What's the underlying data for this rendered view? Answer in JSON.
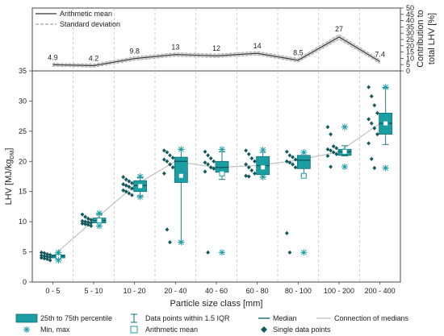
{
  "chart_data": [
    {
      "type": "line",
      "panel": "top",
      "ylabel_line1": "Contribution to",
      "ylabel_line2": "total LHV [%]",
      "ylim": [
        0,
        50
      ],
      "yticks": [
        "0",
        "5",
        "10",
        "15",
        "20",
        "25",
        "30",
        "35",
        "40",
        "45",
        "50"
      ],
      "grid": "vertical-dashed",
      "legend": {
        "placement": "top-left",
        "mean": "Arithmetic mean",
        "sd": "Standard deviation"
      },
      "categories": [
        "0 - 5",
        "5 - 10",
        "10 - 20",
        "20 - 40",
        "40 - 60",
        "60 - 80",
        "80 - 100",
        "100 - 200",
        "200 - 400"
      ],
      "series": [
        {
          "name": "Arithmetic mean",
          "values": [
            4.9,
            4.2,
            9.8,
            13,
            12,
            14,
            8.5,
            27,
            7.4
          ]
        }
      ],
      "sd_band": [
        1.2,
        1.2,
        1.4,
        1.4,
        1.4,
        1.4,
        1.4,
        1.9,
        1.4
      ],
      "data_labels": [
        "4.9",
        "4.2",
        "9.8",
        "13",
        "12",
        "14",
        "8.5",
        "27",
        "7.4"
      ]
    },
    {
      "type": "box",
      "panel": "bottom",
      "xlabel": "Particle size class [mm]",
      "ylabel": "LHV [MJ/kg",
      "ylabel_sub": "DM",
      "ylabel_end": "]",
      "ylim": [
        0,
        35
      ],
      "yticks": [
        "0",
        "5",
        "10",
        "15",
        "20",
        "25",
        "30",
        "35"
      ],
      "grid": "vertical-dashed",
      "categories": [
        "0 - 5",
        "5 - 10",
        "10 - 20",
        "20 - 40",
        "40 - 60",
        "60 - 80",
        "80 - 100",
        "100 - 200",
        "200 - 400"
      ],
      "boxes": [
        {
          "q1": 4.0,
          "q3": 4.5,
          "median": 4.3,
          "mean": 4.2,
          "whisker_low": 3.6,
          "whisker_high": 4.9,
          "min": 3.6,
          "max": 4.9
        },
        {
          "q1": 9.8,
          "q3": 10.6,
          "median": 10.2,
          "mean": 10.2,
          "whisker_low": 9.3,
          "whisker_high": 11.2,
          "min": 9.3,
          "max": 11.4
        },
        {
          "q1": 15.0,
          "q3": 16.8,
          "median": 16.0,
          "mean": 15.9,
          "whisker_low": 14.3,
          "whisker_high": 17.3,
          "min": 14.1,
          "max": 17.5
        },
        {
          "q1": 16.5,
          "q3": 20.7,
          "median": 20.0,
          "mean": 17.6,
          "whisker_low": 6.6,
          "whisker_high": 22.0,
          "min": 6.6,
          "max": 22.0
        },
        {
          "q1": 18.2,
          "q3": 20.0,
          "median": 19.0,
          "mean": 18.0,
          "whisker_low": 17.0,
          "whisker_high": 21.6,
          "min": 4.9,
          "max": 22.0
        },
        {
          "q1": 17.8,
          "q3": 20.8,
          "median": 19.3,
          "mean": 19.0,
          "whisker_low": 17.4,
          "whisker_high": 21.5,
          "min": 17.4,
          "max": 21.9
        },
        {
          "q1": 18.8,
          "q3": 21.0,
          "median": 20.2,
          "mean": 17.6,
          "whisker_low": 17.6,
          "whisker_high": 21.5,
          "min": 4.9,
          "max": 21.5
        },
        {
          "q1": 21.0,
          "q3": 22.0,
          "median": 21.6,
          "mean": 21.6,
          "whisker_low": 20.9,
          "whisker_high": 22.6,
          "min": 19.1,
          "max": 25.7
        },
        {
          "q1": 24.5,
          "q3": 28.0,
          "median": 26.3,
          "mean": 26.3,
          "whisker_low": 22.8,
          "whisker_high": 32.2,
          "min": 18.9,
          "max": 32.3
        }
      ],
      "points": [
        [
          4.9,
          4.8,
          4.6,
          4.5,
          4.4,
          4.3,
          4.2,
          4.1,
          4.0,
          3.9,
          3.8,
          3.6
        ],
        [
          11.2,
          10.8,
          10.5,
          10.3,
          10.1,
          10.0,
          9.9,
          9.8,
          9.7,
          9.6,
          9.5,
          9.3
        ],
        [
          17.4,
          17.0,
          16.7,
          16.4,
          16.2,
          16.0,
          15.8,
          15.5,
          15.2,
          15.0,
          14.7,
          14.4
        ],
        [
          21.8,
          21.5,
          21.0,
          20.6,
          20.3,
          20.0,
          19.5,
          19.0,
          18.0,
          8.7,
          6.6
        ],
        [
          21.6,
          21.0,
          20.5,
          20.0,
          19.8,
          19.5,
          19.0,
          18.8,
          18.3,
          4.9
        ],
        [
          21.8,
          21.2,
          20.5,
          20.0,
          19.5,
          19.0,
          18.5,
          18.0,
          17.6,
          17.5
        ],
        [
          21.6,
          21.0,
          20.7,
          20.3,
          20.0,
          19.8,
          19.5,
          19.0,
          8.1,
          4.9
        ],
        [
          25.7,
          24.5,
          22.5,
          22.2,
          22.0,
          21.8,
          21.5,
          21.2,
          20.9,
          19.1
        ],
        [
          32.3,
          30.8,
          29.3,
          28.0,
          27.0,
          26.3,
          25.5,
          24.5,
          23.0,
          20.4,
          18.9
        ]
      ],
      "colors": {
        "box_fill": "#1a9ea4",
        "box_stroke": "#0f6f74",
        "points": "#12585c",
        "median_line": "#c0c0c0"
      },
      "legend": {
        "placement": "bottom",
        "items": [
          {
            "symbol": "box",
            "label": "25th to 75th percentile"
          },
          {
            "symbol": "whisker",
            "label": "Data points within 1.5 IQR"
          },
          {
            "symbol": "median",
            "label": "Median"
          },
          {
            "symbol": "connection",
            "label": "Connection of medians"
          },
          {
            "symbol": "star",
            "label": "Min, max"
          },
          {
            "symbol": "square",
            "label": "Arithmetic mean"
          },
          {
            "symbol": "diamond",
            "label": "Single data points"
          }
        ]
      }
    }
  ]
}
